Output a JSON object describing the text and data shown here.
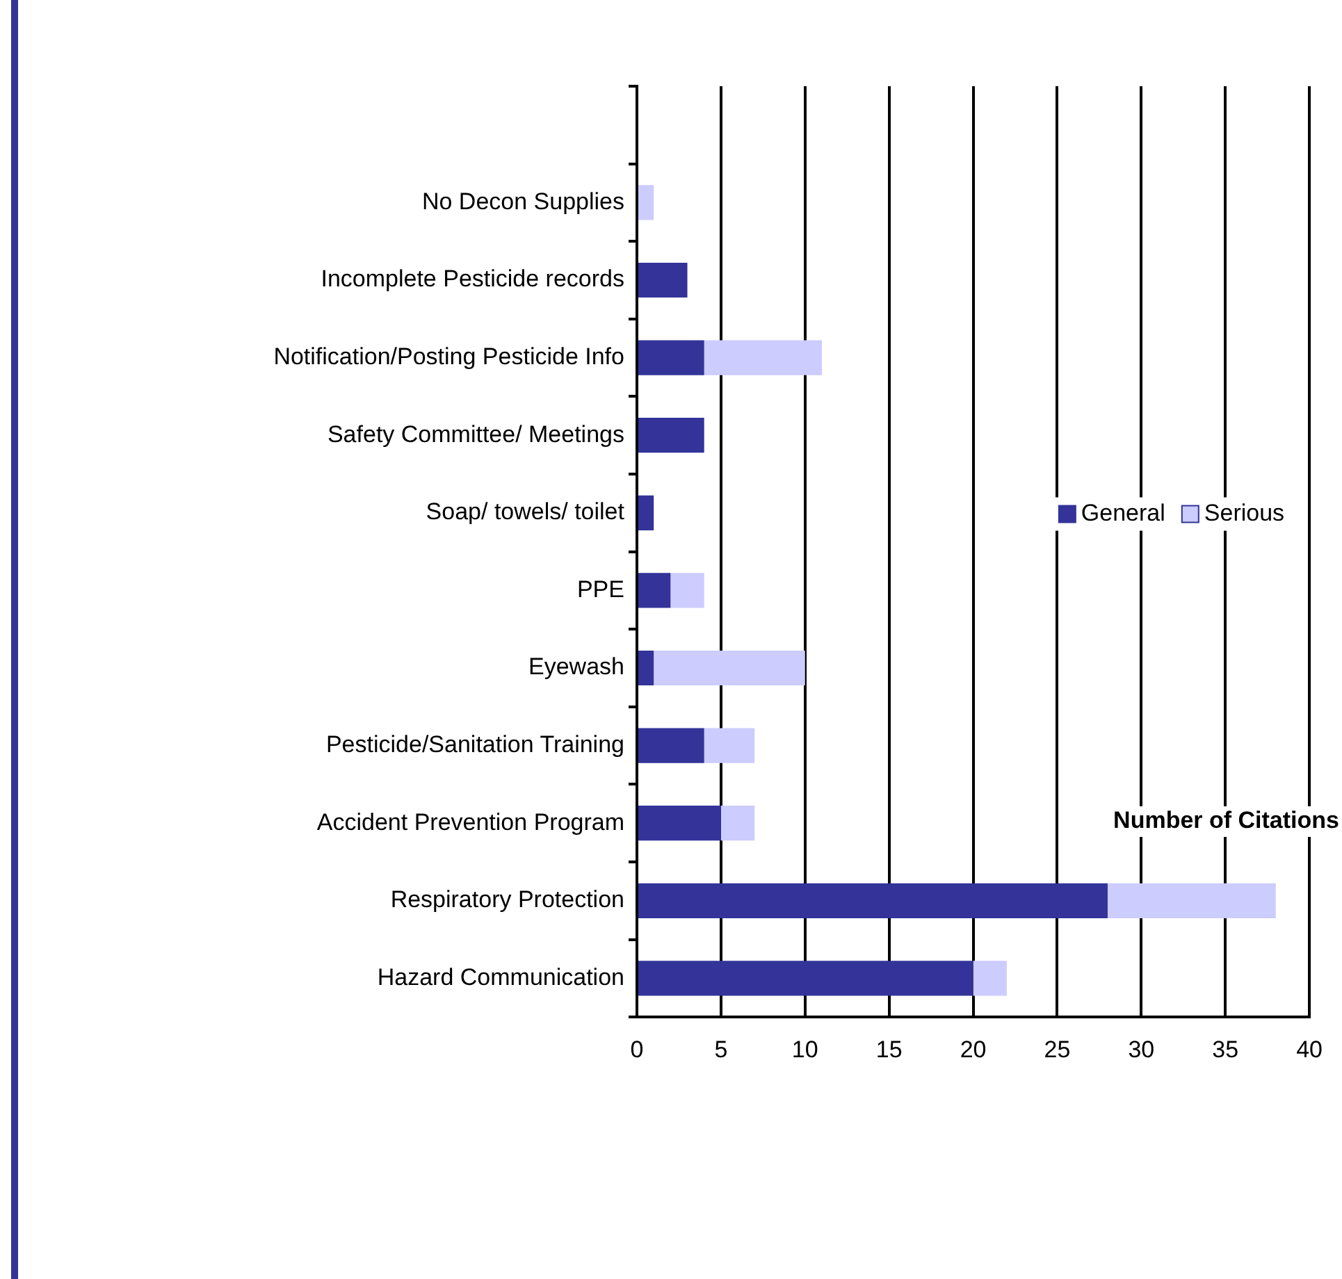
{
  "chart_data": {
    "type": "bar",
    "orientation": "horizontal",
    "stacked": true,
    "xlabel": "Number of Citations",
    "categories": [
      null,
      "No Decon Supplies",
      "Incomplete Pesticide records",
      "Notification/Posting Pesticide Info",
      "Safety Committee/ Meetings",
      "Soap/ towels/ toilet",
      "PPE",
      "Eyewash",
      "Pesticide/Sanitation Training",
      "Accident Prevention Program",
      "Respiratory Protection",
      "Hazard Communication"
    ],
    "series": [
      {
        "name": "General",
        "color": "#333399",
        "values": [
          null,
          0,
          3,
          4,
          4,
          1,
          2,
          1,
          4,
          5,
          28,
          20
        ]
      },
      {
        "name": "Serious",
        "color": "#ccccff",
        "values": [
          null,
          1,
          0,
          7,
          0,
          0,
          2,
          9,
          3,
          2,
          10,
          2
        ]
      }
    ],
    "xlim": [
      0,
      40
    ],
    "xticks": [
      0,
      5,
      10,
      15,
      20,
      25,
      30,
      35,
      40
    ],
    "grid": "x",
    "legend": "right"
  }
}
